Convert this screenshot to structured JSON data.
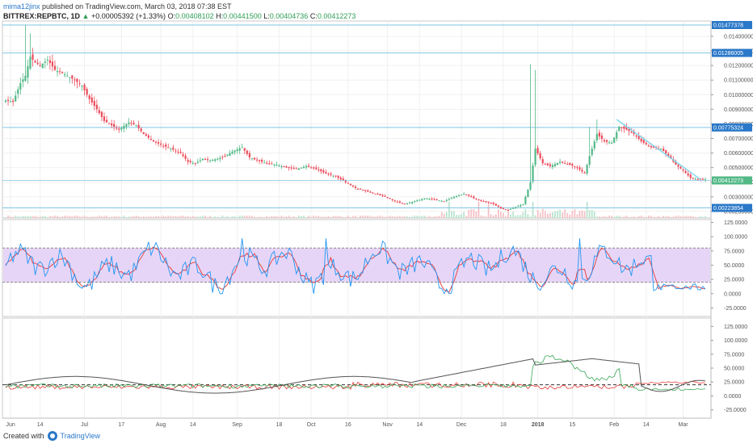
{
  "header": {
    "user": "mima12jinx",
    "published": "published on TradingView.com, March 03, 2018 07:38 EST",
    "symbol": "BITTREX:REPBTC, 1D",
    "arrow": "▲",
    "change": "+0.00005392 (+1.33%)",
    "open_label": "O:",
    "open": "0.00408102",
    "high_label": "H:",
    "high": "0.00441500",
    "low_label": "L:",
    "low": "0.00404736",
    "close_label": "C:",
    "close": "0.00412273"
  },
  "footer": {
    "created_with": "Created with",
    "brand": "TradingView"
  },
  "colors": {
    "up": "#53b987",
    "down": "#eb4d5c",
    "hline": "#7fc6e6",
    "trend": "#7fd8ec",
    "stoch_k": "#2196f3",
    "stoch_d": "#e53935",
    "stoch_band": "#e7d5f7",
    "dmi_plus": "#3aa655",
    "dmi_minus": "#e53935",
    "adx": "#555555"
  },
  "chart_data": [
    {
      "type": "candlestick",
      "pane": "price",
      "y_ticks": [
        "0.01400000",
        "0.01300000",
        "0.01200000",
        "0.01100000",
        "0.01000000",
        "0.00900000",
        "0.00800000",
        "0.00700000",
        "0.00600000",
        "0.00500000",
        "0.00400000",
        "0.00300000",
        "0.00200000"
      ],
      "y_tick_values": [
        0.014,
        0.013,
        0.012,
        0.011,
        0.01,
        0.009,
        0.008,
        0.007,
        0.006,
        0.005,
        0.004,
        0.003,
        0.002
      ],
      "ylim": [
        0.00155,
        0.01505
      ],
      "horizontal_lines": [
        {
          "value": 0.01477378,
          "label": "0.01477378"
        },
        {
          "value": 0.01286005,
          "label": "0.01286005"
        },
        {
          "value": 0.00775324,
          "label": "0.00775324"
        },
        {
          "value": 0.00223854,
          "label": "0.00223854"
        }
      ],
      "last_price": {
        "value": 0.00412273,
        "label": "0.00412273"
      },
      "trend_line": {
        "start_day": 248,
        "start_price": 0.0083,
        "end_day": 282,
        "end_price": 0.0042
      },
      "x_ticks": [
        {
          "label": "Jun",
          "day": 2
        },
        {
          "label": "14",
          "day": 14
        },
        {
          "label": "Jul",
          "day": 32
        },
        {
          "label": "17",
          "day": 47
        },
        {
          "label": "Aug",
          "day": 63
        },
        {
          "label": "14",
          "day": 76
        },
        {
          "label": "Sep",
          "day": 94
        },
        {
          "label": "18",
          "day": 111
        },
        {
          "label": "Oct",
          "day": 124
        },
        {
          "label": "16",
          "day": 139
        },
        {
          "label": "Nov",
          "day": 155
        },
        {
          "label": "14",
          "day": 168
        },
        {
          "label": "Dec",
          "day": 185
        },
        {
          "label": "18",
          "day": 202
        },
        {
          "label": "2018",
          "day": 216
        },
        {
          "label": "15",
          "day": 230
        },
        {
          "label": "Feb",
          "day": 247
        },
        {
          "label": "14",
          "day": 260
        },
        {
          "label": "Mar",
          "day": 275
        }
      ],
      "anchors": [
        [
          0,
          0.0096
        ],
        [
          3,
          0.0095
        ],
        [
          6,
          0.0108
        ],
        [
          8,
          0.0113
        ],
        [
          10,
          0.0126
        ],
        [
          12,
          0.0122
        ],
        [
          14,
          0.012
        ],
        [
          17,
          0.0124
        ],
        [
          20,
          0.0117
        ],
        [
          24,
          0.0114
        ],
        [
          28,
          0.011
        ],
        [
          31,
          0.0106
        ],
        [
          34,
          0.0097
        ],
        [
          37,
          0.009
        ],
        [
          40,
          0.0082
        ],
        [
          43,
          0.0079
        ],
        [
          46,
          0.0076
        ],
        [
          50,
          0.0081
        ],
        [
          53,
          0.0079
        ],
        [
          56,
          0.0073
        ],
        [
          60,
          0.0068
        ],
        [
          64,
          0.0065
        ],
        [
          67,
          0.0063
        ],
        [
          71,
          0.006
        ],
        [
          74,
          0.0054
        ],
        [
          77,
          0.0053
        ],
        [
          80,
          0.0056
        ],
        [
          83,
          0.0055
        ],
        [
          86,
          0.0056
        ],
        [
          89,
          0.0058
        ],
        [
          92,
          0.0061
        ],
        [
          96,
          0.0064
        ],
        [
          99,
          0.0057
        ],
        [
          102,
          0.0055
        ],
        [
          106,
          0.0053
        ],
        [
          110,
          0.0052
        ],
        [
          114,
          0.005
        ],
        [
          118,
          0.0049
        ],
        [
          122,
          0.0051
        ],
        [
          126,
          0.0049
        ],
        [
          130,
          0.0046
        ],
        [
          134,
          0.0044
        ],
        [
          138,
          0.004
        ],
        [
          142,
          0.0036
        ],
        [
          146,
          0.0034
        ],
        [
          150,
          0.0032
        ],
        [
          154,
          0.003
        ],
        [
          158,
          0.0027
        ],
        [
          162,
          0.0025
        ],
        [
          166,
          0.0027
        ],
        [
          170,
          0.0029
        ],
        [
          174,
          0.0028
        ],
        [
          178,
          0.0027
        ],
        [
          182,
          0.003
        ],
        [
          186,
          0.0032
        ],
        [
          190,
          0.0029
        ],
        [
          194,
          0.0027
        ],
        [
          198,
          0.0025
        ],
        [
          201,
          0.0022
        ],
        [
          204,
          0.0021
        ],
        [
          207,
          0.0023
        ],
        [
          210,
          0.0025
        ],
        [
          213,
          0.004
        ],
        [
          215,
          0.0063
        ],
        [
          218,
          0.0053
        ],
        [
          221,
          0.0051
        ],
        [
          225,
          0.0054
        ],
        [
          229,
          0.0052
        ],
        [
          232,
          0.005
        ],
        [
          235,
          0.0046
        ],
        [
          237,
          0.0058
        ],
        [
          240,
          0.0073
        ],
        [
          243,
          0.0068
        ],
        [
          246,
          0.0067
        ],
        [
          249,
          0.0078
        ],
        [
          252,
          0.0076
        ],
        [
          255,
          0.0073
        ],
        [
          258,
          0.0068
        ],
        [
          262,
          0.0064
        ],
        [
          266,
          0.0063
        ],
        [
          269,
          0.0058
        ],
        [
          272,
          0.0052
        ],
        [
          275,
          0.0048
        ],
        [
          278,
          0.0043
        ],
        [
          281,
          0.0042
        ],
        [
          284,
          0.0042
        ]
      ]
    },
    {
      "type": "bar",
      "pane": "volume",
      "notes": "volume bars along bottom of price pane"
    },
    {
      "type": "line",
      "pane": "stochastic",
      "y_ticks": [
        "125.0000",
        "100.0000",
        "75.0000",
        "50.0000",
        "25.0000",
        "0.0000",
        "-25.0000"
      ],
      "y_tick_values": [
        125,
        100,
        75,
        50,
        25,
        0,
        -25
      ],
      "ylim": [
        -40,
        130
      ],
      "band": [
        20,
        80
      ],
      "series": [
        {
          "name": "",
          "color_key": "stoch_k"
        },
        {
          "name": "",
          "color_key": "stoch_d"
        }
      ]
    },
    {
      "type": "line",
      "pane": "dmi",
      "y_ticks": [
        "125.0000",
        "100.0000",
        "75.0000",
        "50.0000",
        "25.0000",
        "0.0000",
        "-25.0000"
      ],
      "y_tick_values": [
        125,
        100,
        75,
        50,
        25,
        0,
        -25
      ],
      "ylim": [
        -40,
        140
      ],
      "reference_line": 20,
      "series": [
        {
          "name": "",
          "color_key": "dmi_plus"
        },
        {
          "name": "",
          "color_key": "dmi_minus"
        },
        {
          "name": "",
          "color_key": "adx"
        }
      ]
    }
  ]
}
